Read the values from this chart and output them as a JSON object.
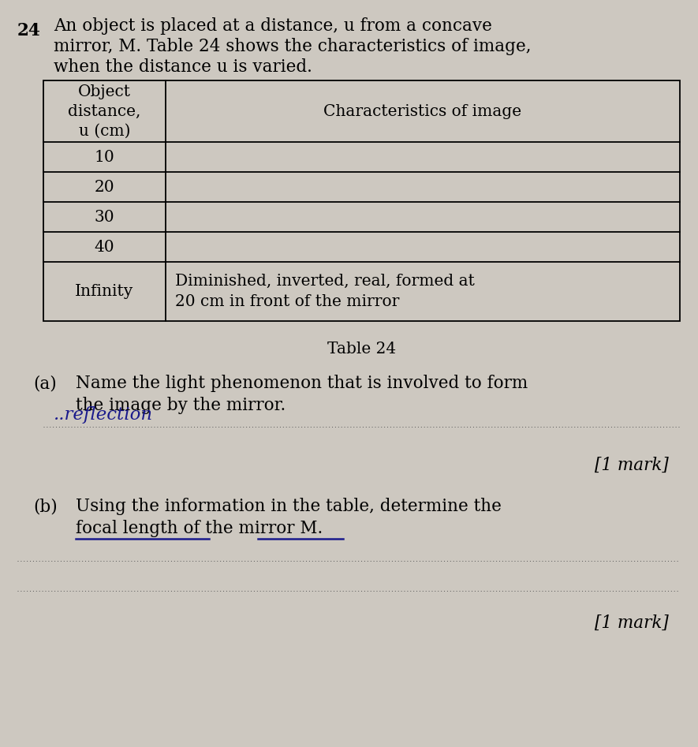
{
  "bg_color": "#cdc8c0",
  "question_number": "24",
  "intro_line1": "An object is placed at a distance, u from a concave",
  "intro_line2": "mirror, M. Table 24 shows the characteristics of image,",
  "intro_line3": "when the distance u is varied.",
  "table_caption": "Table 24",
  "col1_header": "Object\ndistance,\nu (cm)",
  "col2_header": "Characteristics of image",
  "rows": [
    [
      "10",
      ""
    ],
    [
      "20",
      ""
    ],
    [
      "30",
      ""
    ],
    [
      "40",
      ""
    ],
    [
      "Infinity",
      "Diminished, inverted, real, formed at\n20 cm in front of the mirror"
    ]
  ],
  "part_a_label": "(a)",
  "part_a_text": "Name the light phenomenon that is involved to form",
  "part_a_text2": "the image by the mirror.",
  "part_a_answer": "..reflection",
  "part_a_mark": "[1 mark]",
  "part_b_label": "(b)",
  "part_b_text": "Using the information in the table, determine the",
  "part_b_text2": "focal length of the mirror M.",
  "part_b_mark": "[1 mark]",
  "font_size_intro": 15.5,
  "font_size_table": 14.5,
  "font_size_parts": 15.5,
  "font_size_answer": 15.5
}
